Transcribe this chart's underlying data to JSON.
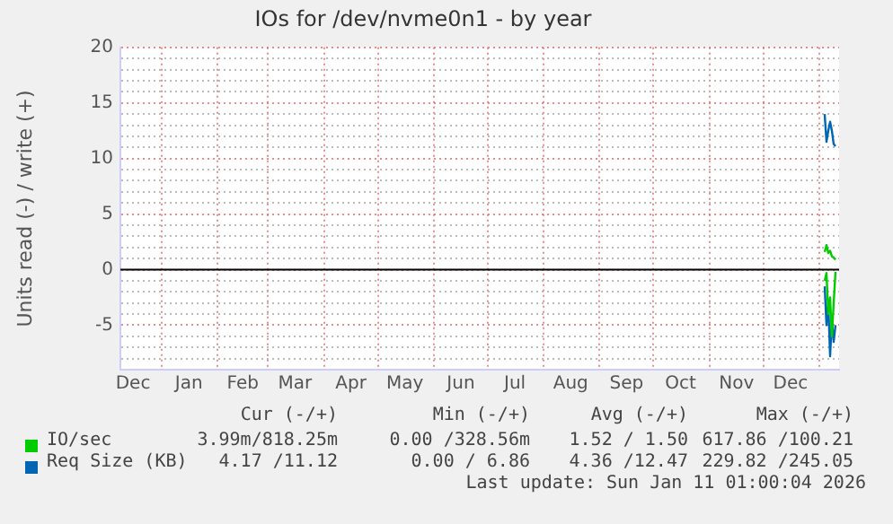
{
  "chart_data": {
    "type": "line",
    "title": "IOs for /dev/nvme0n1 - by year",
    "ylabel": "Units read (-) / write (+)",
    "x": [
      "2026-01-04T00:00",
      "2026-01-05T00:00",
      "2026-01-06T00:00",
      "2026-01-07T00:00",
      "2026-01-08T00:00",
      "2026-01-09T00:00",
      "2026-01-10T00:00"
    ],
    "series": [
      {
        "name": "IO/sec",
        "color": "#00cc00",
        "values": [
          1.6,
          2.2,
          1.5,
          1.7,
          1.2,
          1.1,
          0.9
        ]
      },
      {
        "name": "Req Size (KB)",
        "color": "#0066b3",
        "values": [
          14.0,
          11.5,
          12.5,
          13.3,
          12.5,
          11.3,
          11.1
        ]
      },
      {
        "color": "#00cc00",
        "values": [
          -1.0,
          -0.3,
          -4.0,
          -2.5,
          -6.0,
          -3.0,
          -0.2
        ]
      },
      {
        "color": "#0066b3",
        "values": [
          -1.5,
          -5.0,
          -3.0,
          -7.8,
          -4.5,
          -6.5,
          -5.0
        ]
      }
    ],
    "xlim": [
      "2024-12-09",
      "2026-01-12"
    ],
    "xticks": [
      {
        "value": "2024-12-16",
        "label": "Dec"
      },
      {
        "value": "2025-01-01",
        "label": null
      },
      {
        "value": "2025-01-16",
        "label": "Jan"
      },
      {
        "value": "2025-02-01",
        "label": null
      },
      {
        "value": "2025-02-15",
        "label": "Feb"
      },
      {
        "value": "2025-03-01",
        "label": null
      },
      {
        "value": "2025-03-16",
        "label": "Mar"
      },
      {
        "value": "2025-04-01",
        "label": null
      },
      {
        "value": "2025-04-16",
        "label": "Apr"
      },
      {
        "value": "2025-05-01",
        "label": null
      },
      {
        "value": "2025-05-16",
        "label": "May"
      },
      {
        "value": "2025-06-01",
        "label": null
      },
      {
        "value": "2025-06-16",
        "label": "Jun"
      },
      {
        "value": "2025-07-01",
        "label": null
      },
      {
        "value": "2025-07-16",
        "label": "Jul"
      },
      {
        "value": "2025-08-01",
        "label": null
      },
      {
        "value": "2025-08-16",
        "label": "Aug"
      },
      {
        "value": "2025-09-01",
        "label": null
      },
      {
        "value": "2025-09-16",
        "label": "Sep"
      },
      {
        "value": "2025-10-01",
        "label": null
      },
      {
        "value": "2025-10-16",
        "label": "Oct"
      },
      {
        "value": "2025-11-01",
        "label": null
      },
      {
        "value": "2025-11-16",
        "label": "Nov"
      },
      {
        "value": "2025-12-01",
        "label": null
      },
      {
        "value": "2025-12-16",
        "label": "Dec"
      },
      {
        "value": "2026-01-01",
        "label": null
      }
    ],
    "ylim": [
      -9,
      20
    ],
    "yticks": [
      {
        "value": -9,
        "label": null
      },
      {
        "value": -8,
        "label": null
      },
      {
        "value": -7,
        "label": null
      },
      {
        "value": -6,
        "label": null
      },
      -5,
      {
        "value": -4,
        "label": null
      },
      {
        "value": -3,
        "label": null
      },
      {
        "value": -2,
        "label": null
      },
      {
        "value": -1,
        "label": null
      },
      0,
      {
        "value": 1,
        "label": null
      },
      {
        "value": 2,
        "label": null
      },
      {
        "value": 3,
        "label": null
      },
      {
        "value": 4,
        "label": null
      },
      5,
      {
        "value": 6,
        "label": null
      },
      {
        "value": 7,
        "label": null
      },
      {
        "value": 8,
        "label": null
      },
      {
        "value": 9,
        "label": null
      },
      10,
      {
        "value": 11,
        "label": null
      },
      {
        "value": 12,
        "label": null
      },
      {
        "value": 13,
        "label": null
      },
      {
        "value": 14,
        "label": null
      },
      15,
      {
        "value": 16,
        "label": null
      },
      {
        "value": 17,
        "label": null
      },
      {
        "value": 18,
        "label": null
      },
      {
        "value": 19,
        "label": null
      },
      20
    ],
    "ref_lines": [
      {
        "axis": "y",
        "value": 0,
        "color": "#000000"
      }
    ],
    "grid": true,
    "legend": "bottom left",
    "marker": "none",
    "line_style": "solid",
    "annotations": [
      "Cur (-/+)",
      "Min (-/+)",
      "Avg (-/+)",
      "Max (-/+)",
      "3.99m/818.25m",
      "0.00 /328.56m",
      "1.52 / 1.50",
      "617.86 /100.21",
      "4.17 /11.12",
      "0.00 / 6.86",
      "4.36 /12.47",
      "229.82 /245.05",
      "Last update: Sun Jan 11 01:00:04 2026"
    ]
  }
}
